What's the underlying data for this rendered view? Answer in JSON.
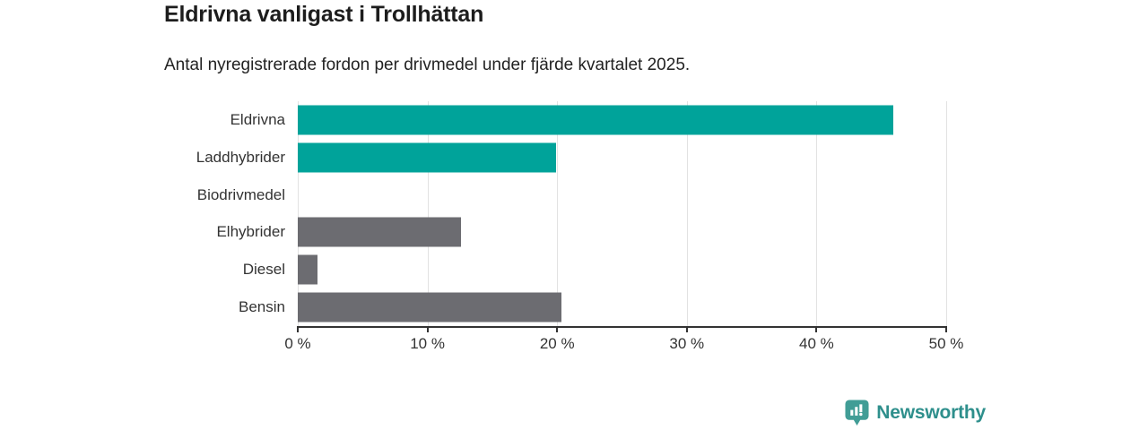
{
  "chart": {
    "title": "Eldrivna vanligast i Trollhättan",
    "subtitle": "Antal nyregistrerade fordon per drivmedel under fjärde kvartalet 2025."
  },
  "chart_data": {
    "type": "bar",
    "orientation": "horizontal",
    "title": "Eldrivna vanligast i Trollhättan",
    "subtitle": "Antal nyregistrerade fordon per drivmedel under fjärde kvartalet 2025.",
    "categories": [
      "Eldrivna",
      "Laddhybrider",
      "Biodrivmedel",
      "Elhybrider",
      "Diesel",
      "Bensin"
    ],
    "values": [
      45.9,
      19.9,
      0,
      12.6,
      1.5,
      20.3
    ],
    "unit": "%",
    "xlim": [
      0,
      50
    ],
    "x_ticks": [
      0,
      10,
      20,
      30,
      40,
      50
    ],
    "x_tick_labels": [
      "0 %",
      "10 %",
      "20 %",
      "30 %",
      "40 %",
      "50 %"
    ],
    "grid": true,
    "legend": "none",
    "series_colors": [
      "highlight",
      "highlight",
      "neutral",
      "neutral",
      "neutral",
      "neutral"
    ]
  },
  "colors": {
    "highlight": "#00a39a",
    "neutral": "#6c6c71",
    "gridline": "#e2e2e2",
    "axis": "#333333",
    "logo_icon": "#419d96",
    "logo_text": "#2e8f8c"
  },
  "footer": {
    "brand": "Newsworthy"
  },
  "icons": {
    "logo": "newsworthy-chart-bubble-icon"
  }
}
